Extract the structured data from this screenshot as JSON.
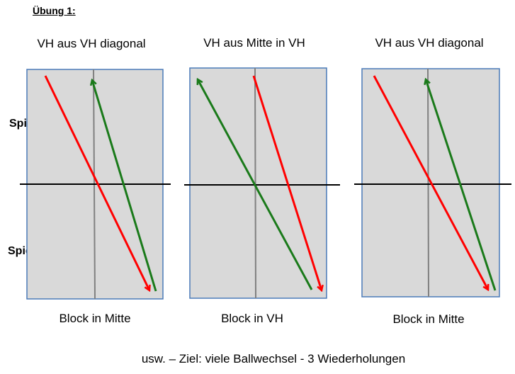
{
  "heading": "Übung 1:",
  "players": {
    "top": "Spieler B",
    "bottom": "Spieler A"
  },
  "colors": {
    "table_fill": "#d9d9d9",
    "table_border": "#4a7ab8",
    "center_line": "#808080",
    "net": "#000000",
    "red_path": "#ff0000",
    "green_path": "#1a7a1a"
  },
  "columns": [
    {
      "title": "VH aus VH diagonal",
      "caption": "Block in Mitte"
    },
    {
      "title": "VH aus Mitte in VH",
      "caption": "Block in VH"
    },
    {
      "title": "VH aus VH diagonal",
      "caption": "Block in Mitte"
    }
  ],
  "footer": "usw. – Ziel: viele Ballwechsel - 3 Wiederholungen"
}
